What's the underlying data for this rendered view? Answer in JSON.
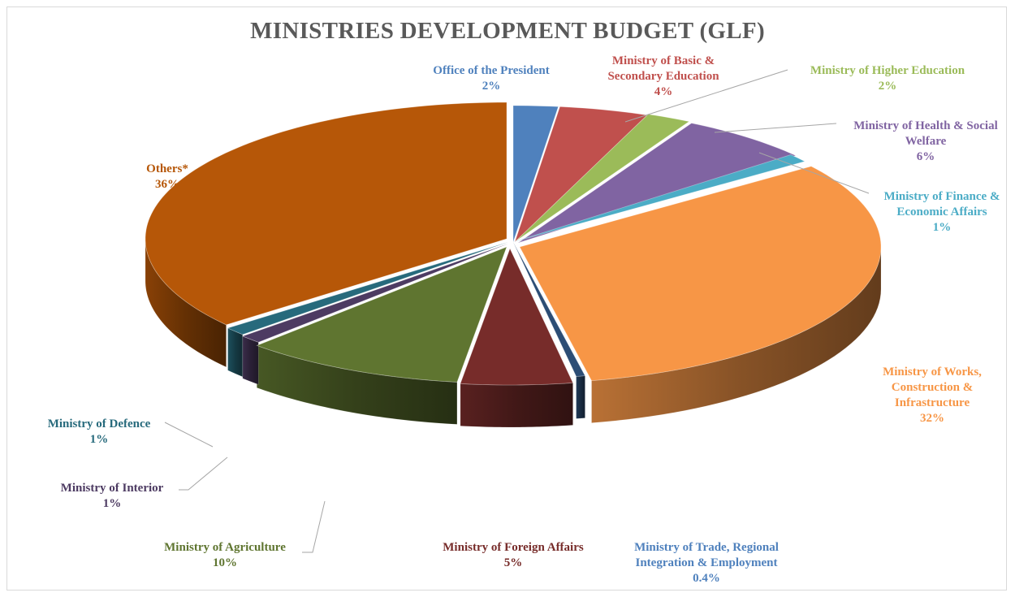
{
  "chart_data": {
    "type": "pie",
    "title": "MINISTRIES DEVELOPMENT BUDGET (GLF)",
    "slices": [
      {
        "label": "Office of the President",
        "value": 2,
        "display": "2%",
        "color": "#4f81bd"
      },
      {
        "label": "Ministry of Basic & Secondary Education",
        "value": 4,
        "display": "4%",
        "color": "#c0504d"
      },
      {
        "label": "Ministry of Higher Education",
        "value": 2,
        "display": "2%",
        "color": "#9bbb59"
      },
      {
        "label": "Ministry of Health & Social Welfare",
        "value": 6,
        "display": "6%",
        "color": "#8064a2"
      },
      {
        "label": "Ministry of Finance & Economic Affairs",
        "value": 1,
        "display": "1%",
        "color": "#4bacc6"
      },
      {
        "label": "Ministry of Works, Construction & Infrastructure",
        "value": 32,
        "display": "32%",
        "color": "#f79646"
      },
      {
        "label": "Ministry of Trade, Regional Integration & Employment",
        "value": 0.4,
        "display": "0.4%",
        "color": "#2c4d75"
      },
      {
        "label": "Ministry of  Foreign Affairs",
        "value": 5,
        "display": "5%",
        "color": "#772c2a"
      },
      {
        "label": "Ministry of  Agriculture",
        "value": 10,
        "display": "10%",
        "color": "#5f7530"
      },
      {
        "label": "Ministry of Interior",
        "value": 1,
        "display": "1%",
        "color": "#4d3b62"
      },
      {
        "label": "Ministry of  Defence",
        "value": 1,
        "display": "1%",
        "color": "#276a7c"
      },
      {
        "label": "Others*",
        "value": 36,
        "display": "36%",
        "color": "#b65708"
      }
    ],
    "label_colors": [
      "#4f81bd",
      "#c0504d",
      "#9bbb59",
      "#8064a2",
      "#4bacc6",
      "#f79646",
      "#4f81bd",
      "#772c2a",
      "#5f7530",
      "#4d3b62",
      "#276a7c",
      "#b65708"
    ],
    "style": "3d-exploded-pie",
    "legend": "none"
  }
}
